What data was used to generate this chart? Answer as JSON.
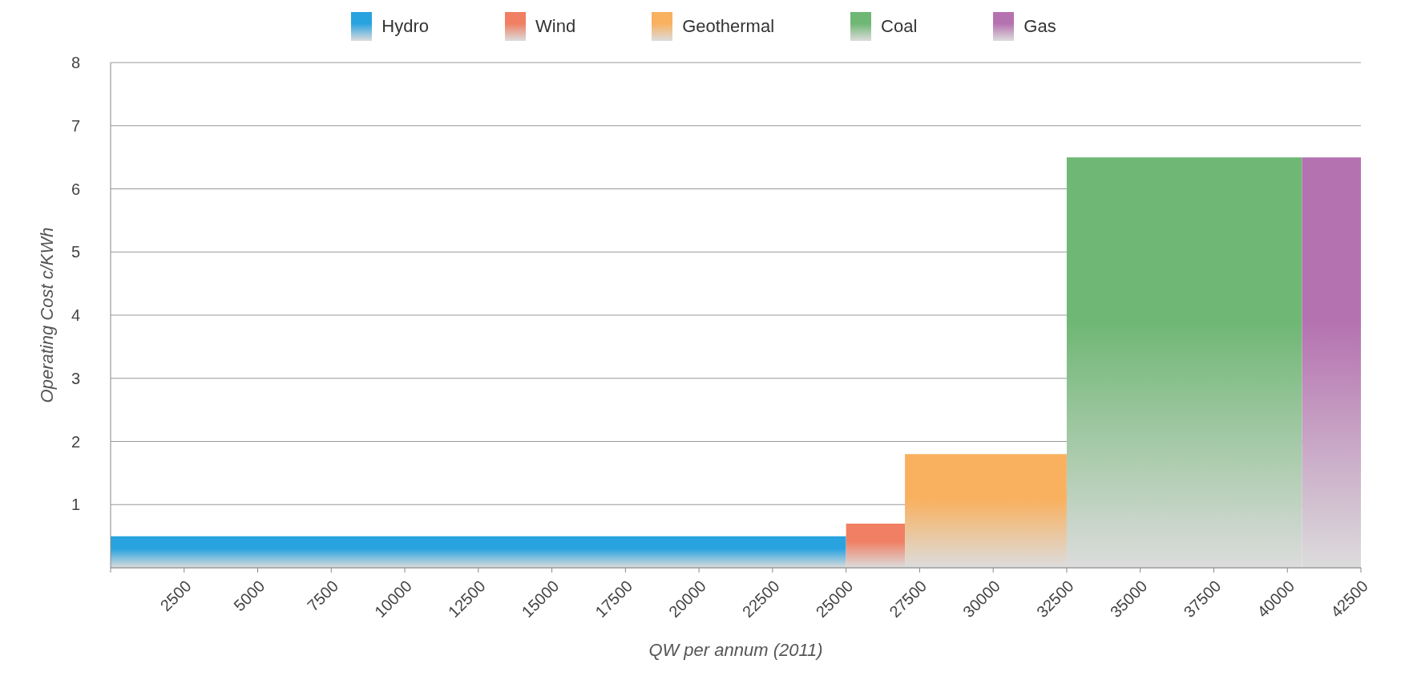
{
  "chart_data": {
    "type": "histogram",
    "xlabel": "QW per annum (2011)",
    "ylabel": "Operating Cost c/KWh",
    "categories": [
      "Hydro",
      "Wind",
      "Geothermal",
      "Coal",
      "Gas"
    ],
    "bins": [
      0,
      25000,
      27000,
      32500,
      40500,
      42500
    ],
    "values": [
      0.5,
      0.7,
      1.8,
      6.5,
      6.5
    ],
    "colors": [
      "#29a3e0",
      "#f07f63",
      "#f9b160",
      "#6fb774",
      "#b572b0"
    ],
    "xlim": [
      0,
      42500
    ],
    "xticks": [
      {
        "value": 0,
        "label": null
      },
      2500,
      5000,
      7500,
      10000,
      12500,
      15000,
      17500,
      20000,
      22500,
      25000,
      27500,
      30000,
      32500,
      35000,
      37500,
      40000,
      42500
    ],
    "ylim": [
      0,
      8
    ],
    "yticks": [
      {
        "value": 0,
        "label": null
      },
      1,
      2,
      3,
      4,
      5,
      6,
      7,
      8
    ],
    "grid": "y"
  }
}
